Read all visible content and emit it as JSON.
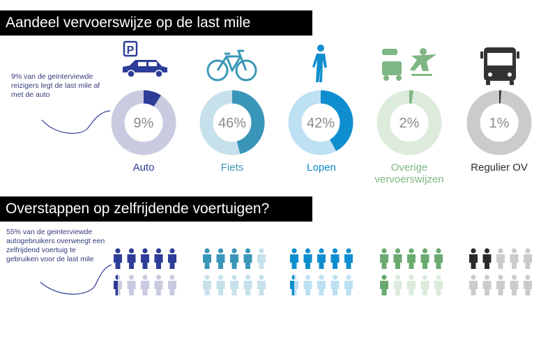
{
  "section1": {
    "title": "Aandeel vervoerswijze op de last mile"
  },
  "section2": {
    "title": "Overstappen op zelfrijdende voertuigen?"
  },
  "annotation1": "9% van de geinterviewde reizigers legt de last mile af met de auto",
  "annotation2": "55% van de geinterviewde autogebruikers overweegt een zelfrijdend voertuig te gebruiken voor de last mile",
  "icons": [
    "parking-car-icon",
    "bicycle-icon",
    "pedestrian-icon",
    "scooter-skater-icon",
    "bus-icon"
  ],
  "chart_data": [
    {
      "type": "pie",
      "title": "Aandeel vervoerswijze op de last mile",
      "categories": [
        "Auto",
        "Fiets",
        "Lopen",
        "Overige vervoerswijzen",
        "Regulier OV"
      ],
      "values": [
        9,
        46,
        42,
        2,
        1
      ],
      "labels": [
        "9%",
        "46%",
        "42%",
        "2%",
        "1%"
      ],
      "colors": [
        "#2e3d98",
        "#3a96b8",
        "#0f8ecf",
        "#7fb784",
        "#2b2b2b"
      ],
      "track_colors": [
        "#c9cbe0",
        "#c6e1eb",
        "#bde0f2",
        "#dcebdc",
        "#cbcbcb"
      ],
      "label_colors": [
        "#2e3d98",
        "#3a96b8",
        "#0f8ecf",
        "#7fb784",
        "#2b2b2b"
      ]
    },
    {
      "type": "pictogram",
      "title": "Overstappen op zelfrijdende voertuigen?",
      "categories": [
        "Auto",
        "Fiets",
        "Lopen",
        "Overige vervoerswijzen",
        "Regulier OV"
      ],
      "values": [
        5.5,
        4,
        5.5,
        6,
        2
      ],
      "unit_total": 10,
      "colors": [
        "#2e3d98",
        "#3a96b8",
        "#0f8ecf",
        "#6aaa70",
        "#2b2b2b"
      ],
      "faded_colors": [
        "#c9cbe0",
        "#c6e1eb",
        "#bde0f2",
        "#dcebdc",
        "#cbcbcb"
      ]
    }
  ]
}
